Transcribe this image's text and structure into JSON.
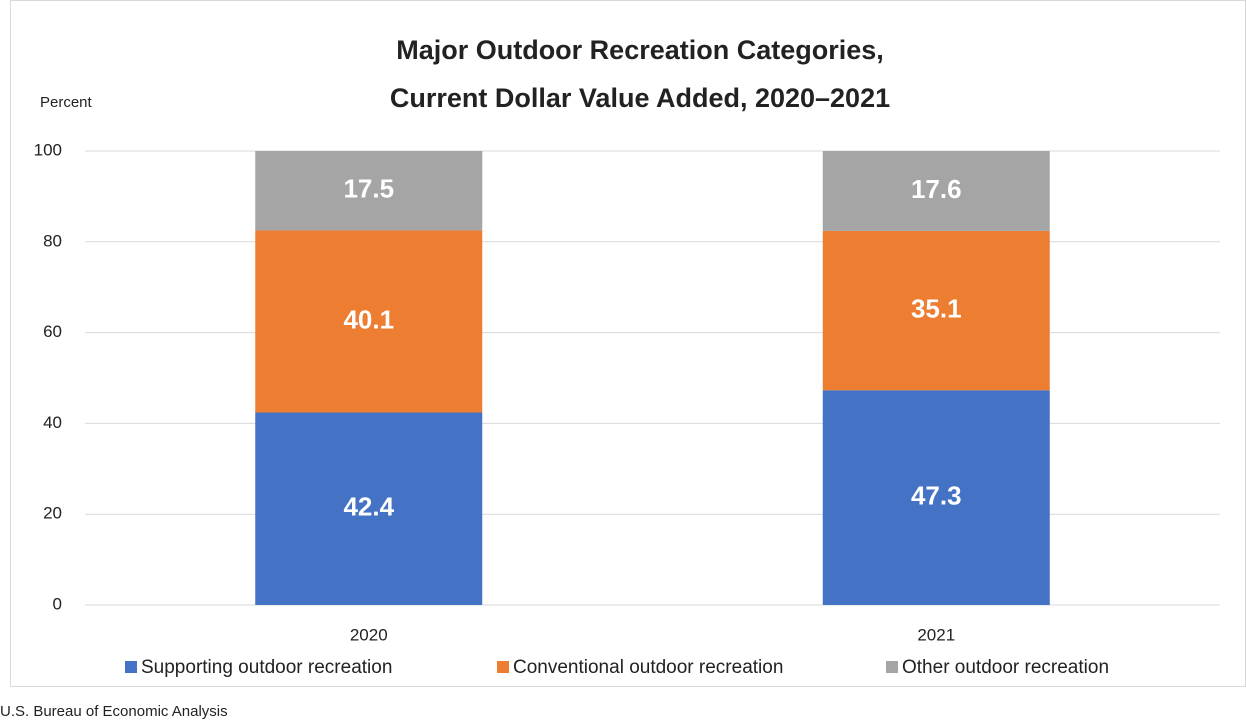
{
  "chart_data": {
    "type": "stacked_bar",
    "title": [
      "Major Outdoor Recreation Categories,",
      "Current Dollar Value Added, 2020–2021"
    ],
    "y_label": "Percent",
    "source": "U.S. Bureau of Economic Analysis",
    "categories": [
      "2020",
      "2021"
    ],
    "series": [
      {
        "name": "Supporting outdoor recreation",
        "color": "#4472c4",
        "values": [
          42.4,
          47.3
        ]
      },
      {
        "name": "Conventional outdoor recreation",
        "color": "#ed7d31",
        "values": [
          40.1,
          35.1
        ]
      },
      {
        "name": "Other outdoor recreation",
        "color": "#a5a5a5",
        "values": [
          17.5,
          17.6
        ]
      }
    ],
    "ylim": [
      0,
      100
    ],
    "yticks": [
      0,
      20,
      40,
      60,
      80,
      100
    ],
    "grid": true,
    "legend": "bottom"
  }
}
